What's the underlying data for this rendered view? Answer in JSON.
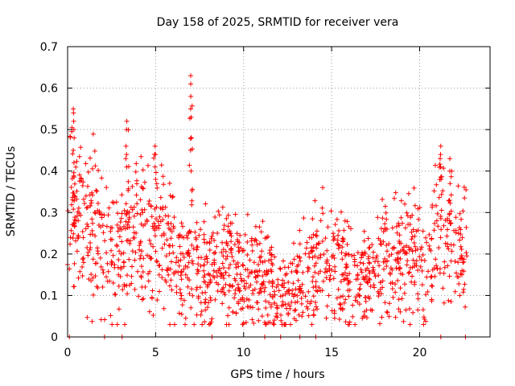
{
  "chart_data": {
    "type": "scatter",
    "title": "Day 158 of 2025, SRMTID for receiver vera",
    "xlabel": "GPS time / hours",
    "ylabel": "SRMTID / TECUs",
    "xlim": [
      0,
      24
    ],
    "ylim": [
      0,
      0.7
    ],
    "xticks": [
      0,
      5,
      10,
      15,
      20
    ],
    "yticks": [
      0,
      0.1,
      0.2,
      0.3,
      0.4,
      0.5,
      0.6,
      0.7
    ],
    "xtick_labels": [
      "0",
      "5",
      "10",
      "15",
      "20"
    ],
    "ytick_labels": [
      "0",
      "0.1",
      "0.2",
      "0.3",
      "0.4",
      "0.5",
      "0.6",
      "0.7"
    ],
    "grid": true,
    "marker": "+",
    "marker_color": "#ff0000",
    "series": [
      {
        "name": "SRMTID",
        "baseline": {
          "x": [
            0.0,
            0.5,
            1.0,
            1.5,
            2.0,
            2.5,
            3.0,
            3.5,
            4.0,
            4.5,
            5.0,
            5.5,
            6.0,
            6.5,
            7.0,
            7.5,
            8.0,
            8.5,
            9.0,
            9.5,
            10.0,
            10.5,
            11.0,
            11.5,
            12.0,
            12.5,
            13.0,
            13.5,
            14.0,
            14.5,
            15.0,
            15.5,
            16.0,
            16.5,
            17.0,
            17.5,
            18.0,
            18.5,
            19.0,
            19.5,
            20.0,
            20.5,
            21.0,
            21.5,
            22.0,
            22.5,
            22.7
          ],
          "y": [
            0.3,
            0.3,
            0.27,
            0.25,
            0.22,
            0.18,
            0.19,
            0.22,
            0.26,
            0.23,
            0.22,
            0.22,
            0.2,
            0.16,
            0.19,
            0.17,
            0.14,
            0.17,
            0.19,
            0.15,
            0.17,
            0.15,
            0.14,
            0.13,
            0.08,
            0.09,
            0.12,
            0.14,
            0.17,
            0.2,
            0.17,
            0.16,
            0.15,
            0.14,
            0.12,
            0.15,
            0.17,
            0.19,
            0.21,
            0.22,
            0.18,
            0.17,
            0.23,
            0.25,
            0.2,
            0.24,
            0.26
          ]
        },
        "spikes": [
          {
            "x": 0.35,
            "y": [
              0.42,
              0.45,
              0.48,
              0.5,
              0.52,
              0.54,
              0.55
            ]
          },
          {
            "x": 3.35,
            "y": [
              0.41,
              0.44,
              0.46,
              0.5,
              0.52
            ]
          },
          {
            "x": 5.0,
            "y": [
              0.38,
              0.41,
              0.44,
              0.46
            ]
          },
          {
            "x": 7.0,
            "y": [
              0.4,
              0.45,
              0.48,
              0.53,
              0.55,
              0.58,
              0.61,
              0.63
            ]
          },
          {
            "x": 21.2,
            "y": [
              0.38,
              0.41,
              0.44,
              0.46
            ]
          },
          {
            "x": 21.7,
            "y": [
              0.37,
              0.4,
              0.43
            ]
          }
        ],
        "zeros_x": [
          0.1,
          2.1,
          3.1,
          8.2,
          11.2,
          12.1,
          13.2,
          14.1,
          21.2,
          22.6
        ]
      }
    ]
  }
}
